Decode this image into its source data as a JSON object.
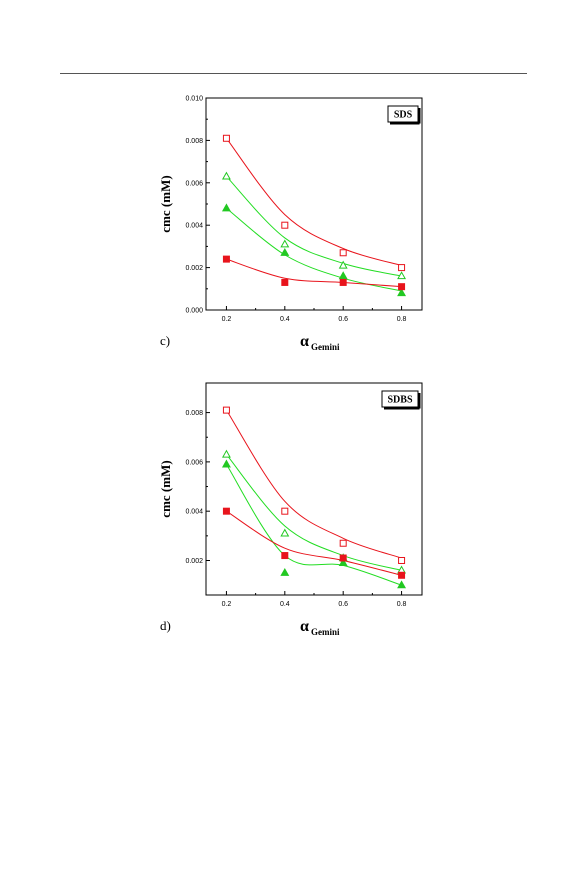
{
  "chart_data": [
    {
      "type": "scatter",
      "panel": "c)",
      "label_box": "SDS",
      "xlabel": "α",
      "xlabel_sub": "Gemini",
      "ylabel": "cmc (mM)",
      "xlim": [
        0.13,
        0.87
      ],
      "ylim": [
        0.0,
        0.01
      ],
      "xticks": [
        "0.2",
        "0.4",
        "0.6",
        "0.8"
      ],
      "xtick_values": [
        0.2,
        0.4,
        0.6,
        0.8
      ],
      "yticks": [
        "0.000",
        "0.002",
        "0.004",
        "0.006",
        "0.008",
        "0.010"
      ],
      "ytick_values": [
        0.0,
        0.002,
        0.004,
        0.006,
        0.008,
        0.01
      ],
      "grid": false,
      "x": [
        0.2,
        0.4,
        0.6,
        0.8
      ],
      "series": [
        {
          "marker": "open-square",
          "color": "#e8141c",
          "line_color": "#e8141c",
          "values": [
            0.0081,
            0.004,
            0.0027,
            0.002
          ],
          "fit": [
            0.0081,
            0.0045,
            0.0029,
            0.0021
          ]
        },
        {
          "marker": "open-triangle",
          "color": "#22c822",
          "line_color": "#22dd22",
          "values": [
            0.0063,
            0.0031,
            0.0021,
            0.0016
          ],
          "fit": [
            0.0063,
            0.0034,
            0.0022,
            0.0016
          ]
        },
        {
          "marker": "filled-triangle",
          "color": "#22c822",
          "line_color": "#22dd22",
          "values": [
            0.0048,
            0.0027,
            0.0016,
            0.0008
          ],
          "fit": [
            0.0048,
            0.0026,
            0.0015,
            0.0009
          ]
        },
        {
          "marker": "filled-square",
          "color": "#e8141c",
          "line_color": "#e8141c",
          "values": [
            0.0024,
            0.0013,
            0.0013,
            0.0011
          ],
          "fit": [
            0.0024,
            0.0015,
            0.0013,
            0.0011
          ]
        }
      ]
    },
    {
      "type": "scatter",
      "panel": "d)",
      "label_box": "SDBS",
      "xlabel": "α",
      "xlabel_sub": "Gemini",
      "ylabel": "cmc (mM)",
      "xlim": [
        0.13,
        0.87
      ],
      "ylim": [
        0.0006,
        0.0092
      ],
      "xticks": [
        "0.2",
        "0.4",
        "0.6",
        "0.8"
      ],
      "xtick_values": [
        0.2,
        0.4,
        0.6,
        0.8
      ],
      "yticks": [
        "0.002",
        "0.004",
        "0.006",
        "0.008"
      ],
      "ytick_values": [
        0.002,
        0.004,
        0.006,
        0.008
      ],
      "grid": false,
      "x": [
        0.2,
        0.4,
        0.6,
        0.8
      ],
      "series": [
        {
          "marker": "open-square",
          "color": "#e8141c",
          "line_color": "#e8141c",
          "values": [
            0.0081,
            0.004,
            0.0027,
            0.002
          ],
          "fit": [
            0.0081,
            0.0044,
            0.0029,
            0.0021
          ]
        },
        {
          "marker": "open-triangle",
          "color": "#22c822",
          "line_color": "#22dd22",
          "values": [
            0.0063,
            0.0031,
            0.0021,
            0.0016
          ],
          "fit": [
            0.0063,
            0.0034,
            0.0022,
            0.0016
          ]
        },
        {
          "marker": "filled-triangle",
          "color": "#22c822",
          "line_color": "#22dd22",
          "values": [
            0.0059,
            0.0015,
            0.0019,
            0.001
          ],
          "fit": [
            0.0059,
            0.0022,
            0.0018,
            0.001
          ]
        },
        {
          "marker": "filled-square",
          "color": "#e8141c",
          "line_color": "#e8141c",
          "values": [
            0.004,
            0.0022,
            0.0021,
            0.0014
          ],
          "fit": [
            0.004,
            0.0025,
            0.002,
            0.0014
          ]
        }
      ]
    }
  ]
}
